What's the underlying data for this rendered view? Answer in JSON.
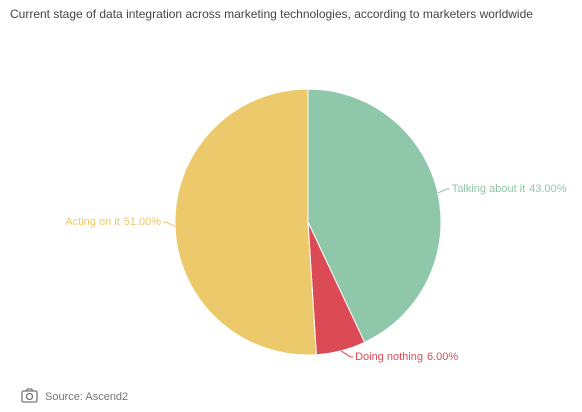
{
  "chart_data": {
    "type": "pie",
    "title": "Current stage of data integration across marketing technologies, according to marketers worldwide",
    "categories": [
      "Talking about it",
      "Doing nothing",
      "Acting on it"
    ],
    "values": [
      43,
      6,
      51
    ],
    "value_labels": [
      "43.00%",
      "6.00%",
      "51.00%"
    ],
    "colors": [
      "#8fc7aa",
      "#dc4a55",
      "#ecc96b"
    ],
    "source": "Source: Ascend2"
  }
}
